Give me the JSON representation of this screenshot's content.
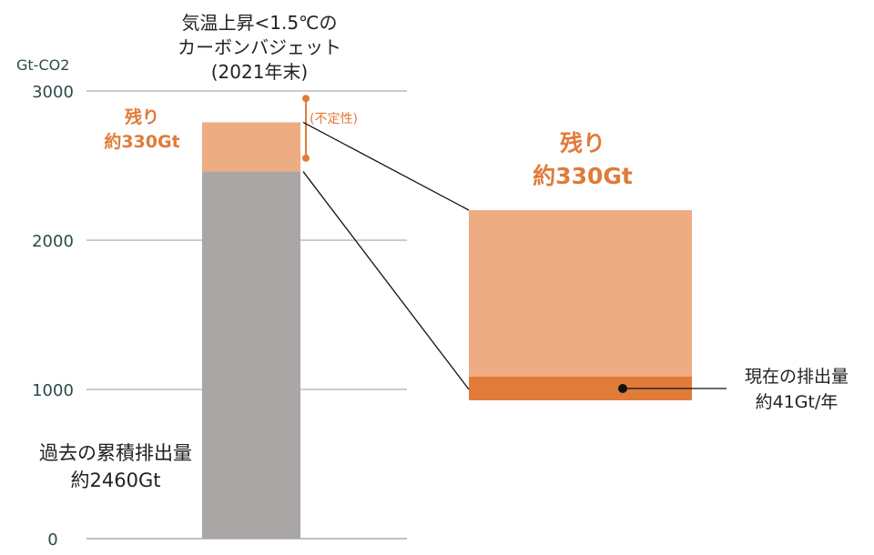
{
  "title": {
    "line1": "気温上昇<1.5℃の",
    "line2": "カーボンバジェット",
    "line3": "(2021年末)"
  },
  "unit": "Gt-CO2",
  "past_label": {
    "line1": "過去の累積排出量",
    "line2": "約2460Gt"
  },
  "remaining_label": {
    "line1": "残り",
    "line2": "約330Gt"
  },
  "current_label": {
    "line1": "現在の排出量",
    "line2": "約41Gt/年"
  },
  "uncertainty_label": "(不定性)",
  "colors": {
    "past": "#aaa6a6",
    "remaining": "#eeac82",
    "current": "#e07b39",
    "accent": "#e07b39",
    "grid": "#999999",
    "axis_text": "#2d4a4a"
  },
  "chart_data": {
    "type": "bar",
    "ylabel": "Gt-CO2",
    "ylim": [
      0,
      3000
    ],
    "yticks": [
      0,
      1000,
      2000,
      3000
    ],
    "grid": true,
    "stack": [
      {
        "name": "過去の累積排出量",
        "value": 2460
      },
      {
        "name": "残り",
        "value": 330
      }
    ],
    "uncertainty_range": [
      2550,
      2950
    ],
    "zoom_detail": [
      {
        "name": "残り",
        "value": 330
      },
      {
        "name": "現在の排出量",
        "value": 41
      }
    ]
  }
}
